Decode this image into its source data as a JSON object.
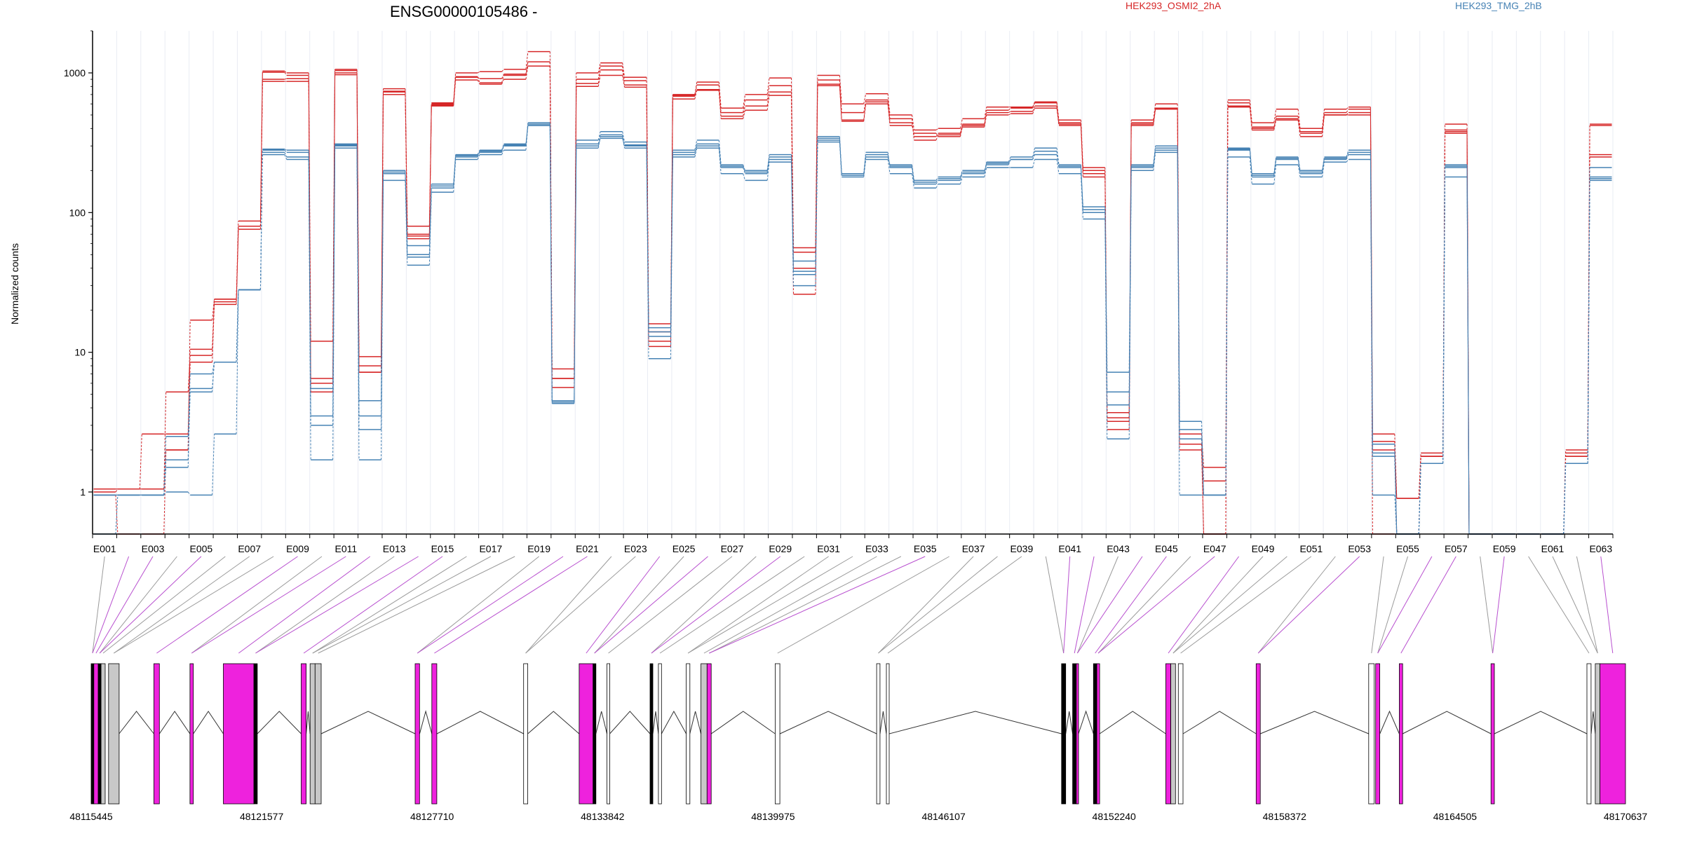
{
  "chart_data": {
    "type": "line",
    "title": "ENSG00000105486 -",
    "ylabel": "Normalized counts",
    "yscale": "log",
    "ylim": [
      0.5,
      2000
    ],
    "yticks": [
      "1",
      "10",
      "100",
      "1000"
    ],
    "legend_placement": "top",
    "exon_labels": [
      "E001",
      "E003",
      "E005",
      "E007",
      "E009",
      "E011",
      "E013",
      "E015",
      "E017",
      "E019",
      "E021",
      "E023",
      "E025",
      "E027",
      "E029",
      "E031",
      "E033",
      "E035",
      "E037",
      "E039",
      "E041",
      "E043",
      "E045",
      "E047",
      "E049",
      "E051",
      "E053",
      "E055",
      "E057",
      "E059",
      "E061",
      "E063"
    ],
    "n_exons": 63,
    "series": [
      {
        "name": "HEK293_OSMI2_2hA",
        "color": "#d62728",
        "replicates": [
          [
            1.05,
            1.05,
            1.05,
            5.2,
            9.5,
            23,
            80,
            1010,
            960,
            12,
            1040,
            8,
            740,
            70,
            590,
            930,
            910,
            980,
            1200,
            6.5,
            900,
            1120,
            880,
            14,
            680,
            820,
            520,
            640,
            810,
            52,
            890,
            520,
            640,
            470,
            330,
            360,
            420,
            540,
            560,
            610,
            440,
            200,
            3.2,
            440,
            560,
            2.2,
            0.5,
            610,
            400,
            490,
            370,
            520,
            550,
            2.3,
            0.5,
            1.8,
            380,
            0.5,
            0.5,
            0.5,
            0.5,
            1.9,
            420
          ],
          [
            1.05,
            1.05,
            2.6,
            2.6,
            10.5,
            24,
            87,
            1030,
            1000,
            6.5,
            1060,
            9.3,
            770,
            80,
            600,
            1000,
            1020,
            1060,
            1420,
            7.6,
            1000,
            1180,
            930,
            16,
            700,
            860,
            560,
            700,
            920,
            56,
            960,
            600,
            710,
            500,
            390,
            400,
            470,
            570,
            570,
            620,
            460,
            210,
            3.7,
            460,
            600,
            2.6,
            1.5,
            640,
            440,
            550,
            400,
            550,
            570,
            2.6,
            0.9,
            1.9,
            430,
            0.5,
            0.5,
            0.5,
            0.5,
            2.0,
            430
          ],
          [
            0.95,
            0.5,
            0.5,
            2.0,
            17,
            24,
            80,
            870,
            870,
            5.2,
            970,
            7.2,
            700,
            65,
            580,
            890,
            830,
            900,
            1120,
            5.6,
            800,
            960,
            790,
            11,
            650,
            760,
            470,
            540,
            690,
            26,
            810,
            450,
            600,
            420,
            370,
            350,
            410,
            500,
            510,
            560,
            420,
            180,
            2.8,
            420,
            550,
            2.0,
            0.5,
            570,
            390,
            460,
            350,
            500,
            500,
            0.5,
            0.5,
            1.8,
            370,
            0.5,
            0.5,
            0.5,
            0.5,
            1.8,
            260
          ],
          [
            1.0,
            1.05,
            1.05,
            2.0,
            8.5,
            22,
            76,
            900,
            910,
            6.0,
            1000,
            7.2,
            730,
            68,
            610,
            940,
            850,
            960,
            1200,
            6.5,
            840,
            1050,
            820,
            12,
            690,
            750,
            490,
            580,
            730,
            40,
            830,
            460,
            620,
            440,
            350,
            370,
            430,
            520,
            530,
            580,
            430,
            190,
            3.4,
            430,
            560,
            2.4,
            1.2,
            580,
            410,
            470,
            380,
            500,
            520,
            2.0,
            0.9,
            1.8,
            390,
            0.5,
            0.5,
            0.5,
            0.5,
            1.8,
            250
          ]
        ]
      },
      {
        "name": "HEK293_TMG_2hB",
        "color": "#4682b4",
        "replicates": [
          [
            0.95,
            0.95,
            0.95,
            2.5,
            7.0,
            8.5,
            28,
            285,
            280,
            5.5,
            300,
            4.5,
            200,
            58,
            160,
            260,
            280,
            310,
            420,
            4.5,
            300,
            340,
            300,
            15,
            260,
            300,
            210,
            190,
            240,
            45,
            330,
            190,
            250,
            220,
            170,
            180,
            200,
            220,
            240,
            260,
            210,
            110,
            7.2,
            210,
            280,
            3.2,
            0.95,
            280,
            180,
            240,
            190,
            240,
            260,
            2.2,
            0.5,
            1.6,
            210,
            0.5,
            0.5,
            0.5,
            0.5,
            1.6,
            210
          ],
          [
            0.95,
            0.95,
            0.95,
            1.7,
            5.2,
            8.5,
            28,
            270,
            250,
            3.5,
            310,
            2.8,
            190,
            50,
            150,
            250,
            270,
            300,
            440,
            4.4,
            330,
            380,
            320,
            14,
            280,
            330,
            220,
            200,
            260,
            36,
            350,
            190,
            270,
            210,
            160,
            170,
            190,
            230,
            250,
            290,
            220,
            100,
            5.2,
            220,
            300,
            2.8,
            0.95,
            290,
            190,
            250,
            200,
            250,
            280,
            1.9,
            0.5,
            1.6,
            220,
            0.5,
            0.5,
            0.5,
            0.5,
            1.6,
            175
          ],
          [
            0.5,
            0.95,
            0.95,
            1.0,
            0.95,
            2.6,
            28,
            260,
            240,
            1.7,
            290,
            1.7,
            170,
            42,
            140,
            240,
            260,
            280,
            420,
            4.3,
            290,
            350,
            290,
            9,
            250,
            290,
            190,
            170,
            230,
            30,
            320,
            180,
            240,
            190,
            150,
            160,
            180,
            210,
            210,
            240,
            190,
            90,
            2.4,
            200,
            270,
            0.95,
            0.95,
            250,
            160,
            220,
            180,
            230,
            240,
            0.95,
            0.5,
            1.6,
            180,
            0.5,
            0.5,
            0.5,
            0.5,
            1.6,
            170
          ],
          [
            0.95,
            0.95,
            0.95,
            1.5,
            5.5,
            8.5,
            28,
            280,
            270,
            3.0,
            305,
            3.5,
            195,
            48,
            155,
            255,
            275,
            305,
            430,
            4.4,
            310,
            360,
            305,
            13,
            270,
            310,
            215,
            195,
            250,
            38,
            340,
            185,
            260,
            215,
            165,
            175,
            195,
            225,
            240,
            275,
            215,
            105,
            4.2,
            215,
            290,
            2.4,
            0.95,
            285,
            185,
            245,
            195,
            245,
            270,
            1.8,
            0.5,
            1.6,
            215,
            0.5,
            0.5,
            0.5,
            0.5,
            1.6,
            180
          ]
        ]
      }
    ],
    "gene_axis": {
      "xlim": [
        48115445,
        48170637
      ],
      "tick_labels": [
        "48115445",
        "48121577",
        "48127710",
        "48133842",
        "48139975",
        "48146107",
        "48152240",
        "48158372",
        "48164505",
        "48170637"
      ]
    }
  }
}
